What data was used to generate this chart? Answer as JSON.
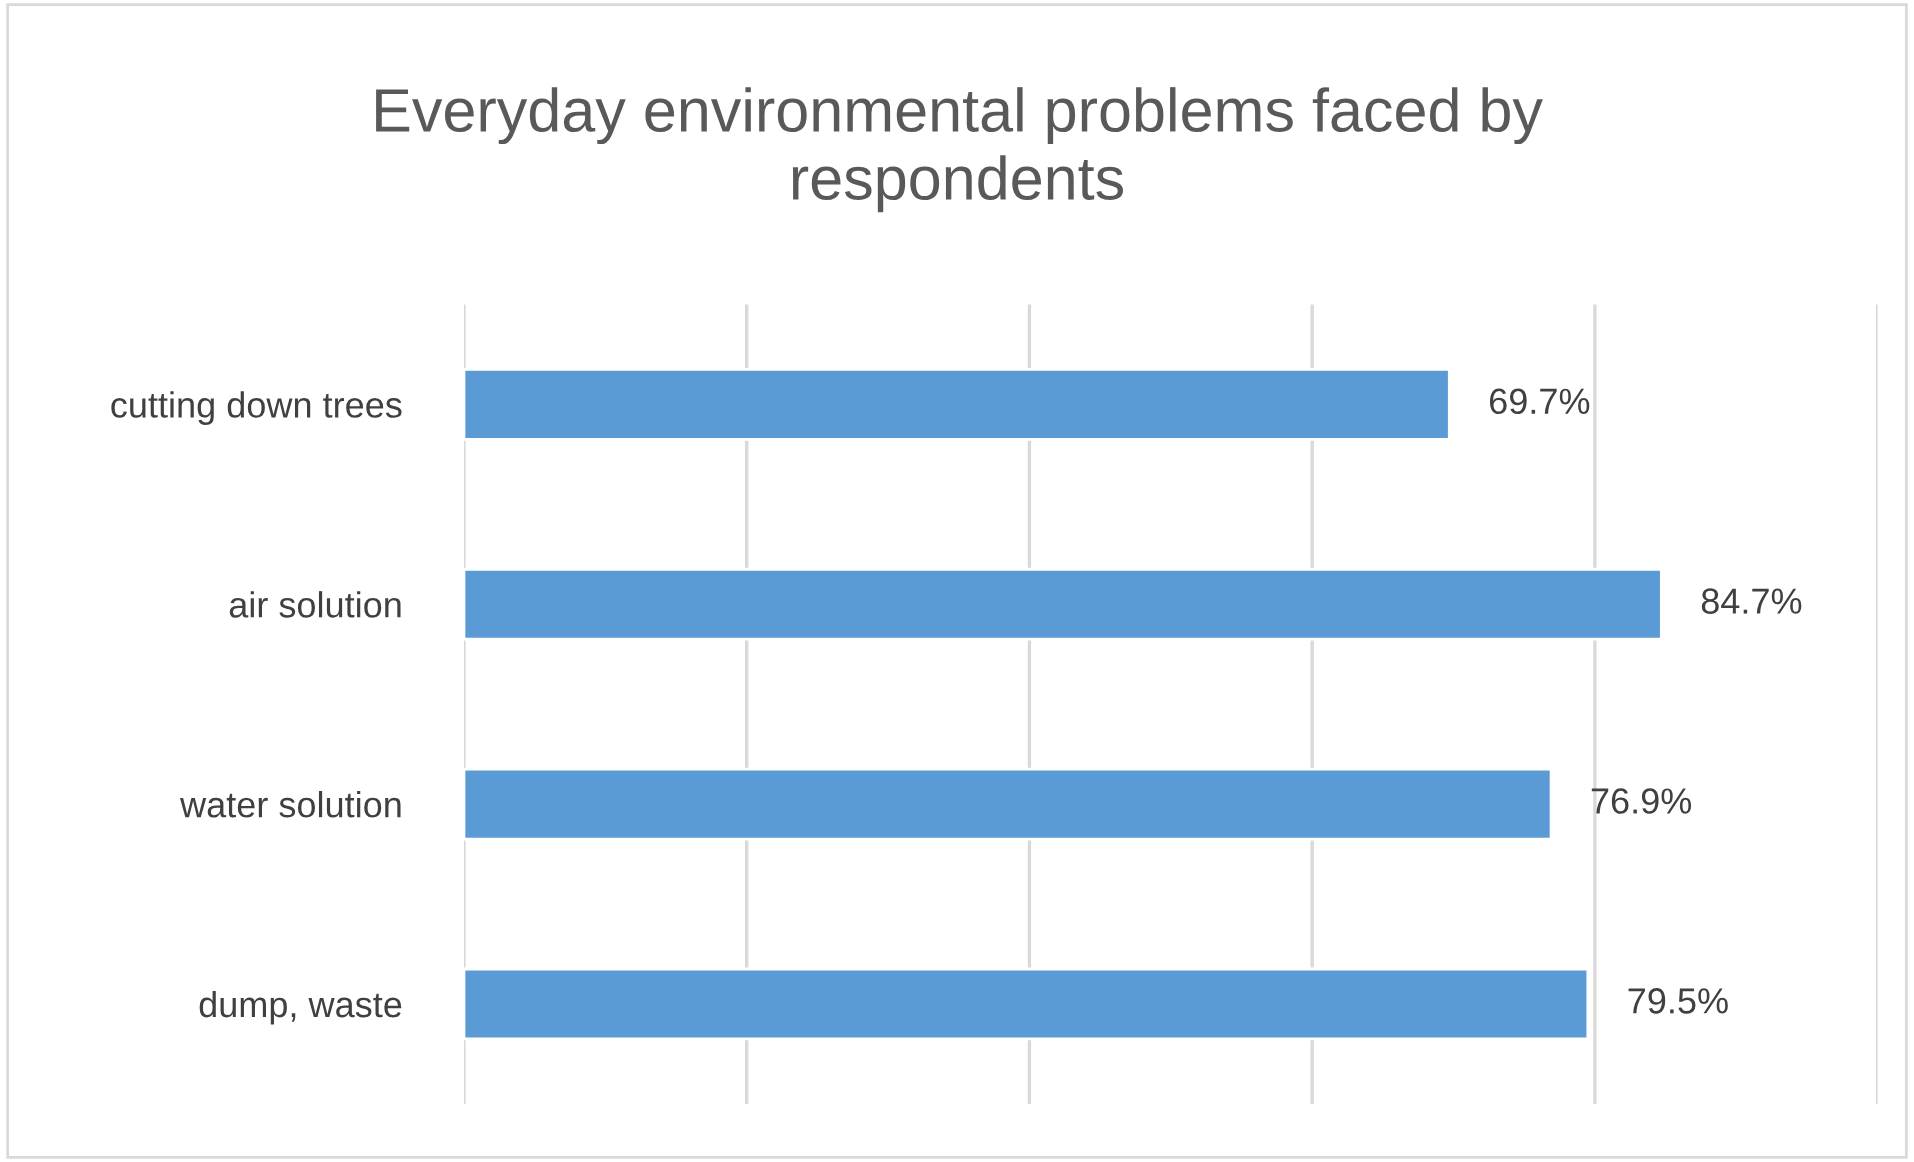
{
  "chart_data": {
    "type": "bar",
    "orientation": "horizontal",
    "title": "Everyday environmental problems faced by respondents",
    "categories": [
      "cutting down trees",
      "air solution",
      "water solution",
      "dump, waste"
    ],
    "values": [
      69.7,
      84.7,
      76.9,
      79.5
    ],
    "value_labels": [
      "69.7%",
      "84.7%",
      "76.9%",
      "79.5%"
    ],
    "color": "#5b9bd5",
    "xlim": [
      0,
      100
    ],
    "xticks": [
      {
        "value": 0,
        "label": null
      },
      {
        "value": 20,
        "label": null
      },
      {
        "value": 40,
        "label": null
      },
      {
        "value": 60,
        "label": null
      },
      {
        "value": 80,
        "label": null
      },
      {
        "value": 100,
        "label": null
      }
    ],
    "grid": "x",
    "legend": false
  }
}
